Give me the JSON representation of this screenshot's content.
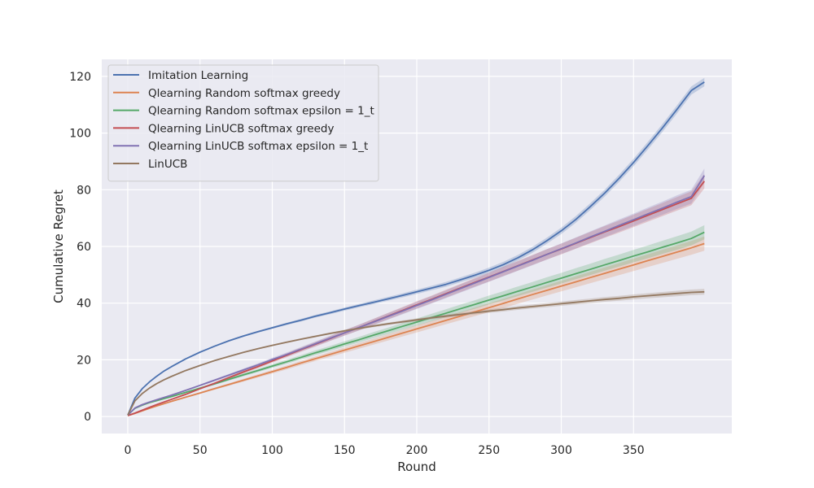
{
  "chart_data": {
    "type": "line",
    "title": "",
    "xlabel": "Round",
    "ylabel": "Cumulative Regret",
    "xlim": [
      -18,
      418
    ],
    "ylim": [
      -6,
      126
    ],
    "xticks": [
      0,
      50,
      100,
      150,
      200,
      250,
      300,
      350
    ],
    "yticks": [
      0,
      20,
      40,
      60,
      80,
      100,
      120
    ],
    "grid": true,
    "legend_position": "top-left",
    "background": "#EAEAF2",
    "x": [
      0,
      5,
      10,
      15,
      20,
      25,
      30,
      40,
      50,
      60,
      70,
      80,
      90,
      100,
      110,
      120,
      130,
      140,
      150,
      160,
      170,
      180,
      190,
      200,
      210,
      220,
      230,
      240,
      250,
      260,
      270,
      280,
      290,
      300,
      310,
      320,
      330,
      340,
      350,
      360,
      370,
      380,
      390,
      399
    ],
    "series": [
      {
        "name": "Imitation Learning",
        "color": "#4C72B0",
        "band": 1.5,
        "values": [
          0.5,
          6.5,
          9.8,
          12.2,
          14.2,
          16.0,
          17.5,
          20.3,
          22.7,
          24.8,
          26.7,
          28.4,
          29.9,
          31.3,
          32.7,
          34.0,
          35.4,
          36.6,
          37.9,
          39.1,
          40.3,
          41.5,
          42.7,
          44.0,
          45.3,
          46.6,
          48.2,
          49.8,
          51.6,
          53.6,
          56.0,
          58.8,
          62.0,
          65.5,
          69.5,
          74.0,
          78.8,
          84.0,
          89.6,
          95.6,
          101.8,
          108.3,
          115.0,
          118.0
        ]
      },
      {
        "name": "Qlearning Random softmax greedy",
        "color": "#DD8452",
        "band": 2.5,
        "values": [
          0.3,
          1.1,
          2.0,
          2.9,
          3.7,
          4.5,
          5.3,
          6.8,
          8.3,
          9.8,
          11.3,
          12.8,
          14.3,
          15.8,
          17.3,
          18.9,
          20.4,
          21.9,
          23.4,
          24.9,
          26.4,
          27.9,
          29.4,
          30.9,
          32.4,
          33.9,
          35.4,
          36.9,
          38.4,
          39.9,
          41.5,
          43.0,
          44.5,
          46.0,
          47.5,
          49.0,
          50.5,
          52.0,
          53.5,
          55.0,
          56.5,
          58.0,
          59.5,
          61.0
        ]
      },
      {
        "name": "Qlearning Random softmax epsilon = 1_t",
        "color": "#55A868",
        "band": 2.5,
        "values": [
          0.5,
          2.9,
          4.0,
          4.9,
          5.6,
          6.3,
          7.0,
          8.5,
          10.0,
          11.5,
          13.1,
          14.7,
          16.2,
          17.8,
          19.3,
          20.9,
          22.5,
          24.0,
          25.6,
          27.1,
          28.7,
          30.2,
          31.8,
          33.3,
          34.9,
          36.4,
          38.0,
          39.5,
          41.1,
          42.6,
          44.2,
          45.7,
          47.3,
          48.8,
          50.4,
          51.9,
          53.5,
          55.0,
          56.6,
          58.1,
          59.7,
          61.2,
          62.8,
          65.0
        ]
      },
      {
        "name": "Qlearning LinUCB softmax greedy",
        "color": "#C44E52",
        "band": 2.5,
        "values": [
          0.3,
          1.2,
          2.2,
          3.2,
          4.2,
          5.1,
          6.0,
          7.8,
          9.8,
          11.7,
          13.7,
          15.7,
          17.6,
          19.6,
          21.6,
          23.6,
          25.5,
          27.5,
          29.5,
          31.4,
          33.4,
          35.4,
          37.4,
          39.4,
          41.3,
          43.3,
          45.3,
          47.3,
          49.2,
          51.2,
          53.2,
          55.2,
          57.2,
          59.1,
          61.1,
          63.1,
          65.1,
          67.0,
          69.0,
          71.0,
          73.0,
          75.0,
          77.0,
          83.0
        ]
      },
      {
        "name": "Qlearning LinUCB softmax epsilon = 1_t",
        "color": "#8172B3",
        "band": 2.5,
        "values": [
          0.5,
          3.0,
          4.2,
          5.1,
          5.9,
          6.7,
          7.5,
          9.2,
          11.0,
          12.8,
          14.6,
          16.4,
          18.2,
          20.1,
          21.9,
          23.8,
          25.7,
          27.6,
          29.5,
          31.4,
          33.3,
          35.3,
          37.2,
          39.2,
          41.1,
          43.1,
          45.1,
          47.1,
          49.1,
          51.1,
          53.1,
          55.1,
          57.2,
          59.2,
          61.2,
          63.3,
          65.3,
          67.4,
          69.4,
          71.5,
          73.5,
          75.6,
          77.6,
          85.0
        ]
      },
      {
        "name": "LinUCB",
        "color": "#937860",
        "band": 1.0,
        "values": [
          0.5,
          5.5,
          8.1,
          10.0,
          11.6,
          12.9,
          14.1,
          16.2,
          18.0,
          19.7,
          21.2,
          22.6,
          23.9,
          25.1,
          26.2,
          27.3,
          28.3,
          29.3,
          30.2,
          31.1,
          31.9,
          32.7,
          33.4,
          34.1,
          34.8,
          35.4,
          36.0,
          36.6,
          37.2,
          37.7,
          38.3,
          38.8,
          39.3,
          39.8,
          40.3,
          40.8,
          41.3,
          41.7,
          42.2,
          42.6,
          43.0,
          43.4,
          43.8,
          44.0
        ]
      }
    ]
  }
}
